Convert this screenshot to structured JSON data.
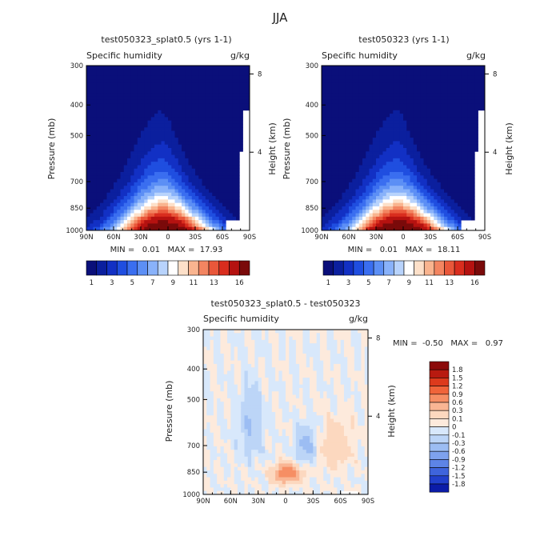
{
  "season_title": "JJA",
  "panels": [
    {
      "title": "test050323_splat0.5 (yrs 1-1)",
      "variable": "Specific humidity",
      "units": "g/kg",
      "ylabel": "Pressure (mb)",
      "y2label": "Height (km)",
      "stats": "MIN =   0.01   MAX =  17.93"
    },
    {
      "title": "test050323 (yrs 1-1)",
      "variable": "Specific humidity",
      "units": "g/kg",
      "ylabel": "Pressure (mb)",
      "y2label": "Height (km)",
      "stats": "MIN =   0.01   MAX =  18.11"
    },
    {
      "title": "test050323_splat0.5 - test050323",
      "variable": "Specific humidity",
      "units": "g/kg",
      "ylabel": "Pressure (mb)",
      "y2label": "Height (km)",
      "stats": "MIN =  -0.50   MAX =   0.97"
    }
  ],
  "chart_data": [
    {
      "type": "heatmap",
      "title": "test050323_splat0.5 (yrs 1-1)",
      "x": [
        "90N",
        "60N",
        "30N",
        "0",
        "30S",
        "60S",
        "90S"
      ],
      "x_values": [
        90,
        60,
        30,
        0,
        -30,
        -60,
        -90
      ],
      "pressure_ticks": [
        300,
        400,
        500,
        700,
        850,
        1000
      ],
      "height_ticks_km": [
        4,
        8
      ],
      "ylim": [
        1000,
        300
      ],
      "min": 0.01,
      "max": 17.93,
      "peak": {
        "lat": 5,
        "pressure": 950,
        "value": 17.93
      },
      "colorbar_labels": [
        "1",
        "3",
        "5",
        "7",
        "9",
        "11",
        "13",
        "16"
      ],
      "colorbar_levels": [
        1,
        2,
        3,
        4,
        5,
        6,
        7,
        8,
        9,
        10,
        11,
        12,
        13,
        14,
        16
      ]
    },
    {
      "type": "heatmap",
      "title": "test050323 (yrs 1-1)",
      "x": [
        "90N",
        "60N",
        "30N",
        "0",
        "30S",
        "60S",
        "90S"
      ],
      "x_values": [
        90,
        60,
        30,
        0,
        -30,
        -60,
        -90
      ],
      "pressure_ticks": [
        300,
        400,
        500,
        700,
        850,
        1000
      ],
      "height_ticks_km": [
        4,
        8
      ],
      "ylim": [
        1000,
        300
      ],
      "min": 0.01,
      "max": 18.11,
      "peak": {
        "lat": 5,
        "pressure": 950,
        "value": 18.11
      },
      "colorbar_labels": [
        "1",
        "3",
        "5",
        "7",
        "9",
        "11",
        "13",
        "16"
      ],
      "colorbar_levels": [
        1,
        2,
        3,
        4,
        5,
        6,
        7,
        8,
        9,
        10,
        11,
        12,
        13,
        14,
        16
      ]
    },
    {
      "type": "heatmap",
      "title": "test050323_splat0.5 - test050323",
      "x": [
        "90N",
        "60N",
        "30N",
        "0",
        "30S",
        "60S",
        "90S"
      ],
      "x_values": [
        90,
        60,
        30,
        0,
        -30,
        -60,
        -90
      ],
      "pressure_ticks": [
        300,
        400,
        500,
        700,
        850,
        1000
      ],
      "height_ticks_km": [
        4,
        8
      ],
      "ylim": [
        1000,
        300
      ],
      "min": -0.5,
      "max": 0.97,
      "peak": {
        "lat": -5,
        "pressure": 860,
        "value": 0.97
      },
      "colorbar_labels": [
        "1.8",
        "1.5",
        "1.2",
        "0.9",
        "0.6",
        "0.3",
        "0.1",
        "0",
        "-0.1",
        "-0.3",
        "-0.6",
        "-0.9",
        "-1.2",
        "-1.5",
        "-1.8"
      ]
    }
  ],
  "colors": {
    "abs_scale": [
      "#0a0f7a",
      "#0b1f9e",
      "#1230c4",
      "#1f4ee0",
      "#3a6ef0",
      "#5c8ff5",
      "#89b2fa",
      "#b8d3fc",
      "#ffffff",
      "#fde0c9",
      "#f9b48f",
      "#f38561",
      "#e9573a",
      "#d92d1e",
      "#b51210",
      "#7a0a0a"
    ],
    "diff_scale_top_down": [
      "#8b0a0a",
      "#b81a10",
      "#dd3a1c",
      "#f0643a",
      "#f68e64",
      "#f9b593",
      "#fcd8bf",
      "#fdeadc",
      "#d8e8fb",
      "#bcd5f7",
      "#9cbdf3",
      "#7ea2ee",
      "#5d84e6",
      "#3e64dc",
      "#2140cc",
      "#0b1ca8"
    ]
  }
}
